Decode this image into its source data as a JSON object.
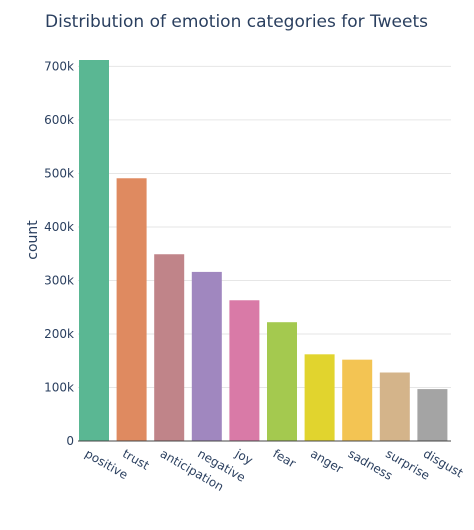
{
  "chart_data": {
    "type": "bar",
    "title": "Distribution of emotion categories for Tweets",
    "xlabel": "",
    "ylabel": "count",
    "categories": [
      "positive",
      "trust",
      "anticipation",
      "negative",
      "joy",
      "fear",
      "anger",
      "sadness",
      "surprise",
      "disgust"
    ],
    "values": [
      712000,
      491000,
      349000,
      316000,
      263000,
      222000,
      162000,
      152000,
      128000,
      97000
    ],
    "colors": [
      "#5ab793",
      "#df8a60",
      "#c08489",
      "#a087bf",
      "#d97aa7",
      "#a4c94f",
      "#e1d42e",
      "#f3c453",
      "#d4b48a",
      "#a4a4a4"
    ],
    "ylim": [
      0,
      712000
    ],
    "yticks": [
      0,
      100000,
      200000,
      300000,
      400000,
      500000,
      600000,
      700000
    ],
    "ytick_labels": [
      "0",
      "100k",
      "200k",
      "300k",
      "400k",
      "500k",
      "600k",
      "700k"
    ],
    "grid": true,
    "legend": "none"
  }
}
